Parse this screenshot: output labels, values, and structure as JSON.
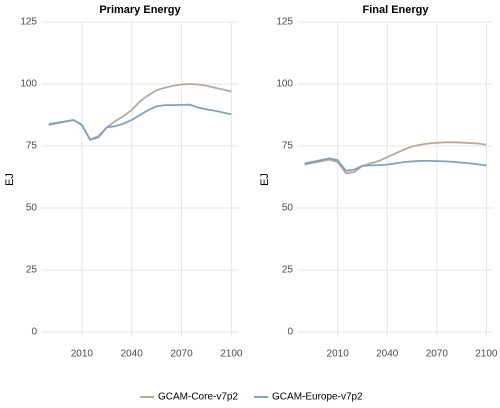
{
  "chart_data": [
    {
      "type": "line",
      "title": "Primary Energy",
      "y_label": "EJ",
      "x": [
        1990,
        2005,
        2010,
        2015,
        2020,
        2025,
        2030,
        2035,
        2040,
        2045,
        2050,
        2055,
        2060,
        2065,
        2070,
        2075,
        2080,
        2085,
        2090,
        2095,
        2100
      ],
      "series": [
        {
          "name": "GCAM-Core-v7p2",
          "color": "#b9a99d",
          "values": [
            83.5,
            85.5,
            83.5,
            77.5,
            79,
            82.5,
            85,
            87,
            89.5,
            93,
            95.5,
            97.5,
            98.5,
            99.3,
            99.8,
            100,
            99.8,
            99.3,
            98.5,
            97.8,
            97
          ]
        },
        {
          "name": "GCAM-Europe-v7p2",
          "color": "#80a3bd",
          "values": [
            83.8,
            85.5,
            83.5,
            77.5,
            78.5,
            82.5,
            83,
            84,
            85.5,
            87.5,
            89.5,
            91,
            91.5,
            91.5,
            91.6,
            91.7,
            90.5,
            89.8,
            89.2,
            88.5,
            87.8
          ]
        }
      ],
      "xlim": [
        1986,
        2104
      ],
      "xticks": [
        2010,
        2040,
        2070,
        2100
      ],
      "ylim": [
        -2,
        125
      ],
      "yticks": [
        0,
        25,
        50,
        75,
        100,
        125
      ],
      "grid": true,
      "legend": "bottom"
    },
    {
      "type": "line",
      "title": "Final Energy",
      "y_label": "EJ",
      "x": [
        1990,
        2005,
        2010,
        2015,
        2020,
        2025,
        2030,
        2035,
        2040,
        2045,
        2050,
        2055,
        2060,
        2065,
        2070,
        2075,
        2080,
        2085,
        2090,
        2095,
        2100
      ],
      "series": [
        {
          "name": "GCAM-Core-v7p2",
          "color": "#b9a99d",
          "values": [
            67.5,
            69.5,
            68.5,
            64,
            64.5,
            67,
            68,
            69,
            70.5,
            72,
            73.5,
            74.8,
            75.5,
            76,
            76.3,
            76.5,
            76.5,
            76.4,
            76.2,
            76,
            75.5
          ]
        },
        {
          "name": "GCAM-Europe-v7p2",
          "color": "#80a3bd",
          "values": [
            68,
            70,
            69.3,
            65,
            65.5,
            67,
            67.2,
            67.3,
            67.5,
            68,
            68.5,
            68.8,
            69,
            69,
            68.9,
            68.8,
            68.6,
            68.3,
            68,
            67.6,
            67.2
          ]
        }
      ],
      "xlim": [
        1986,
        2104
      ],
      "xticks": [
        2010,
        2040,
        2070,
        2100
      ],
      "ylim": [
        -2,
        125
      ],
      "yticks": [
        0,
        25,
        50,
        75,
        100,
        125
      ],
      "grid": true,
      "legend": "bottom"
    }
  ]
}
